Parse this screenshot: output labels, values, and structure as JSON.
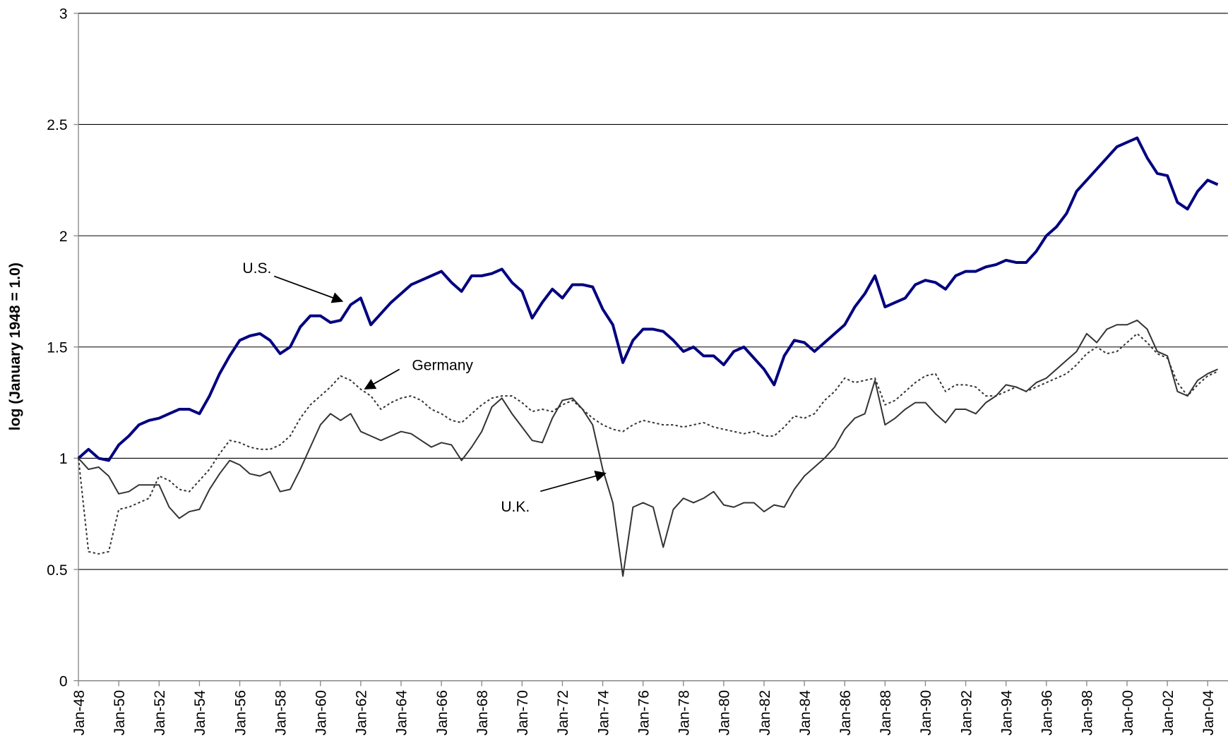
{
  "chart_data": {
    "type": "line",
    "y_label": "log (January 1948 = 1.0)",
    "ylim": [
      0,
      3
    ],
    "yticks": [
      0,
      0.5,
      1,
      1.5,
      2,
      2.5,
      3
    ],
    "grid": true,
    "categories": [
      "Jan-48",
      null,
      null,
      null,
      "Jan-50",
      null,
      null,
      null,
      "Jan-52",
      null,
      null,
      null,
      "Jan-54",
      null,
      null,
      null,
      "Jan-56",
      null,
      null,
      null,
      "Jan-58",
      null,
      null,
      null,
      "Jan-60",
      null,
      null,
      null,
      "Jan-62",
      null,
      null,
      null,
      "Jan-64",
      null,
      null,
      null,
      "Jan-66",
      null,
      null,
      null,
      "Jan-68",
      null,
      null,
      null,
      "Jan-70",
      null,
      null,
      null,
      "Jan-72",
      null,
      null,
      null,
      "Jan-74",
      null,
      null,
      null,
      "Jan-76",
      null,
      null,
      null,
      "Jan-78",
      null,
      null,
      null,
      "Jan-80",
      null,
      null,
      null,
      "Jan-82",
      null,
      null,
      null,
      "Jan-84",
      null,
      null,
      null,
      "Jan-86",
      null,
      null,
      null,
      "Jan-88",
      null,
      null,
      null,
      "Jan-90",
      null,
      null,
      null,
      "Jan-92",
      null,
      null,
      null,
      "Jan-94",
      null,
      null,
      null,
      "Jan-96",
      null,
      null,
      null,
      "Jan-98",
      null,
      null,
      null,
      "Jan-00",
      null,
      null,
      null,
      "Jan-02",
      null,
      null,
      null,
      "Jan-04",
      null
    ],
    "series": [
      {
        "name": "U.S.",
        "color": "#000080",
        "style": "solid",
        "values": [
          1.0,
          1.04,
          1.0,
          0.99,
          1.06,
          1.1,
          1.15,
          1.17,
          1.18,
          1.2,
          1.22,
          1.22,
          1.2,
          1.28,
          1.38,
          1.46,
          1.53,
          1.55,
          1.56,
          1.53,
          1.47,
          1.5,
          1.59,
          1.64,
          1.64,
          1.61,
          1.62,
          1.69,
          1.72,
          1.6,
          1.65,
          1.7,
          1.74,
          1.78,
          1.8,
          1.82,
          1.84,
          1.79,
          1.75,
          1.82,
          1.82,
          1.83,
          1.85,
          1.79,
          1.75,
          1.63,
          1.7,
          1.76,
          1.72,
          1.78,
          1.78,
          1.77,
          1.67,
          1.6,
          1.43,
          1.53,
          1.58,
          1.58,
          1.57,
          1.53,
          1.48,
          1.5,
          1.46,
          1.46,
          1.42,
          1.48,
          1.5,
          1.45,
          1.4,
          1.33,
          1.46,
          1.53,
          1.52,
          1.48,
          1.52,
          1.56,
          1.6,
          1.68,
          1.74,
          1.82,
          1.68,
          1.7,
          1.72,
          1.78,
          1.8,
          1.79,
          1.76,
          1.82,
          1.84,
          1.84,
          1.86,
          1.87,
          1.89,
          1.88,
          1.88,
          1.93,
          2.0,
          2.04,
          2.1,
          2.2,
          2.25,
          2.3,
          2.35,
          2.4,
          2.42,
          2.44,
          2.35,
          2.28,
          2.27,
          2.15,
          2.12,
          2.2,
          2.25,
          2.23
        ]
      },
      {
        "name": "Germany",
        "color": "#333333",
        "style": "dotted",
        "values": [
          1.0,
          0.58,
          0.57,
          0.58,
          0.77,
          0.78,
          0.8,
          0.82,
          0.92,
          0.9,
          0.86,
          0.85,
          0.9,
          0.95,
          1.02,
          1.08,
          1.07,
          1.05,
          1.04,
          1.04,
          1.06,
          1.1,
          1.18,
          1.24,
          1.28,
          1.32,
          1.37,
          1.35,
          1.31,
          1.28,
          1.22,
          1.25,
          1.27,
          1.28,
          1.26,
          1.22,
          1.2,
          1.17,
          1.16,
          1.2,
          1.24,
          1.27,
          1.28,
          1.28,
          1.25,
          1.21,
          1.22,
          1.21,
          1.24,
          1.26,
          1.22,
          1.18,
          1.15,
          1.13,
          1.12,
          1.15,
          1.17,
          1.16,
          1.15,
          1.15,
          1.14,
          1.15,
          1.16,
          1.14,
          1.13,
          1.12,
          1.11,
          1.12,
          1.1,
          1.1,
          1.14,
          1.19,
          1.18,
          1.2,
          1.26,
          1.3,
          1.36,
          1.34,
          1.35,
          1.36,
          1.24,
          1.26,
          1.3,
          1.34,
          1.37,
          1.38,
          1.3,
          1.33,
          1.33,
          1.32,
          1.28,
          1.28,
          1.3,
          1.32,
          1.3,
          1.32,
          1.34,
          1.36,
          1.38,
          1.42,
          1.47,
          1.5,
          1.47,
          1.48,
          1.52,
          1.56,
          1.52,
          1.47,
          1.45,
          1.34,
          1.28,
          1.33,
          1.37,
          1.39
        ]
      },
      {
        "name": "U.K.",
        "color": "#333333",
        "style": "solid",
        "values": [
          1.0,
          0.95,
          0.96,
          0.92,
          0.84,
          0.85,
          0.88,
          0.88,
          0.88,
          0.78,
          0.73,
          0.76,
          0.77,
          0.86,
          0.93,
          0.99,
          0.97,
          0.93,
          0.92,
          0.94,
          0.85,
          0.86,
          0.95,
          1.05,
          1.15,
          1.2,
          1.17,
          1.2,
          1.12,
          1.1,
          1.08,
          1.1,
          1.12,
          1.11,
          1.08,
          1.05,
          1.07,
          1.06,
          0.99,
          1.05,
          1.12,
          1.23,
          1.27,
          1.2,
          1.14,
          1.08,
          1.07,
          1.18,
          1.26,
          1.27,
          1.22,
          1.15,
          0.95,
          0.8,
          0.47,
          0.78,
          0.8,
          0.78,
          0.6,
          0.77,
          0.82,
          0.8,
          0.82,
          0.85,
          0.79,
          0.78,
          0.8,
          0.8,
          0.76,
          0.79,
          0.78,
          0.86,
          0.92,
          0.96,
          1.0,
          1.05,
          1.13,
          1.18,
          1.2,
          1.35,
          1.15,
          1.18,
          1.22,
          1.25,
          1.25,
          1.2,
          1.16,
          1.22,
          1.22,
          1.2,
          1.25,
          1.28,
          1.33,
          1.32,
          1.3,
          1.34,
          1.36,
          1.4,
          1.44,
          1.48,
          1.56,
          1.52,
          1.58,
          1.6,
          1.6,
          1.62,
          1.58,
          1.48,
          1.46,
          1.3,
          1.28,
          1.35,
          1.38,
          1.4
        ]
      }
    ]
  }
}
